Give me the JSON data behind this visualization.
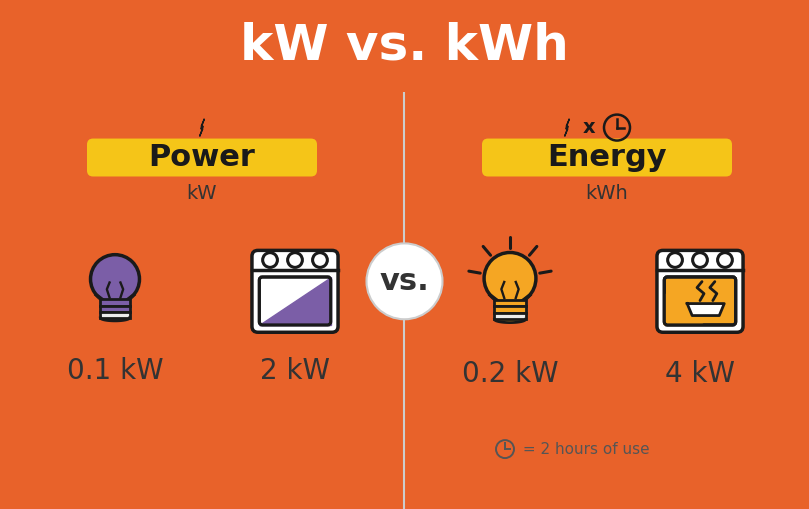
{
  "title": "kW vs. kWh",
  "title_bg_color": "#E8622A",
  "title_text_color": "#FFFFFF",
  "body_bg_color": "#ECECEC",
  "divider_color": "#CCCCCC",
  "left_label": "Power",
  "right_label": "Energy",
  "label_bg_color": "#F5C518",
  "label_text_color": "#1a1a1a",
  "left_unit": "kW",
  "right_unit": "kWh",
  "left_val1": "0.1 kW",
  "left_val2": "2 kW",
  "right_val1": "0.2 kW",
  "right_val2": "4 kW",
  "vs_text": "vs.",
  "note_text": " = 2 hours of use",
  "bulb_off_color": "#7B5EA7",
  "bulb_on_color": "#F5A623",
  "oven_fill_off": "#7B5EA7",
  "oven_fill_on": "#F5A623",
  "icon_outline_color": "#1a1a1a",
  "value_text_color": "#333333",
  "title_fontsize": 36,
  "label_fontsize": 22,
  "unit_fontsize": 14,
  "value_fontsize": 20,
  "vs_fontsize": 22,
  "note_fontsize": 11,
  "fig_w": 8.09,
  "fig_h": 5.09,
  "dpi": 100
}
